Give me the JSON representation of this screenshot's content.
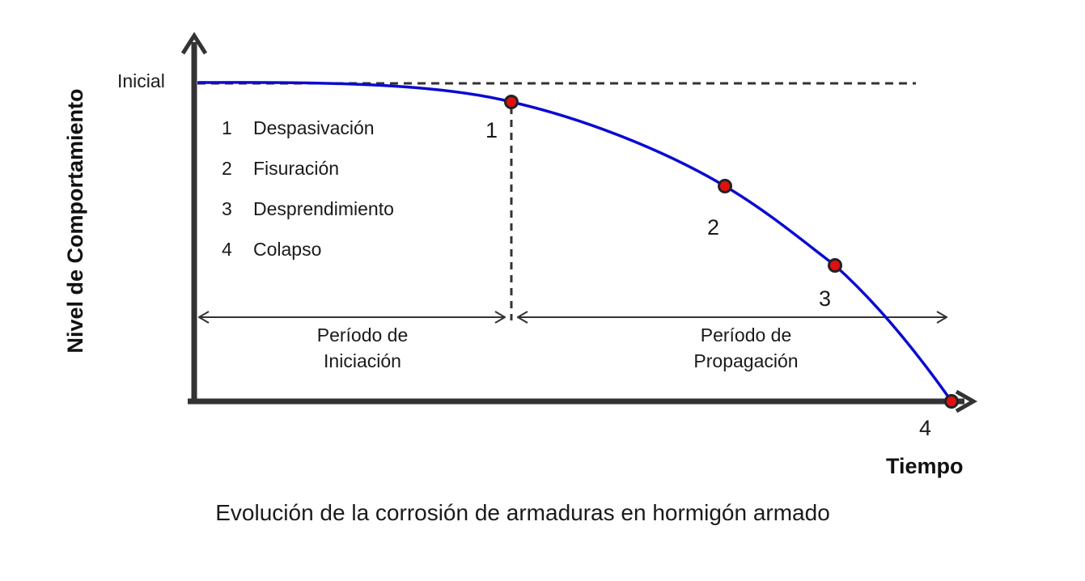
{
  "axes": {
    "y_label": "Nivel de Comportamiento",
    "x_label": "Tiempo",
    "y_tick": "Inicial"
  },
  "legend": [
    {
      "num": "1",
      "text": "Despasivación"
    },
    {
      "num": "2",
      "text": "Fisuración"
    },
    {
      "num": "3",
      "text": "Desprendimiento"
    },
    {
      "num": "4",
      "text": "Colapso"
    }
  ],
  "points": [
    {
      "label": "1"
    },
    {
      "label": "2"
    },
    {
      "label": "3"
    },
    {
      "label": "4"
    }
  ],
  "periods": {
    "initiation": {
      "line1": "Período de",
      "line2": "Iniciación"
    },
    "propagation": {
      "line1": "Período de",
      "line2": "Propagación"
    }
  },
  "caption": "Evolución de la corrosión de armaduras en hormigón armado",
  "colors": {
    "curve": "#0a0ad2",
    "marker_fill": "#e01010",
    "axis": "#333333",
    "dashed": "#333333"
  }
}
